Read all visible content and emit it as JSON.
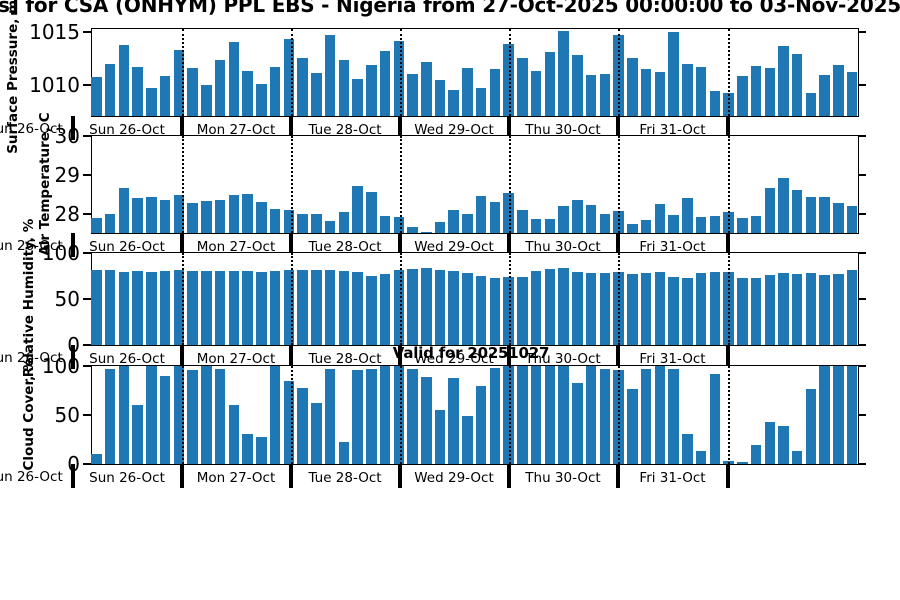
{
  "title": "s] for CSA (ONHYM) PPL EBS  - Nigeria from 27-Oct-2025 00:00:00 to 03-Nov-2025 00:00:00",
  "annotation": {
    "valid_label": "Valid for 20251027"
  },
  "day_labels": [
    "Sun 26-Oct",
    "Mon 27-Oct",
    "Tue 28-Oct",
    "Wed 29-Oct",
    "Thu 30-Oct",
    "Fri 31-Oct"
  ],
  "clipped_left_day_label": "Sun 26-Oct",
  "colors": {
    "bar": "#1f77b4",
    "axis": "#000000",
    "dotted_line": "#000000",
    "text": "#000000"
  },
  "chart_data": [
    {
      "name": "surface-pressure",
      "type": "bar",
      "ylabel": "Surface Pressure, mb",
      "yticks": [
        1010,
        1015
      ],
      "ylim": [
        1007.0,
        1015.3
      ],
      "x_day_labels": [
        "Sun 26-Oct",
        "Mon 27-Oct",
        "Tue 28-Oct",
        "Wed 29-Oct",
        "Thu 30-Oct",
        "Fri 31-Oct"
      ],
      "values": [
        1010.7,
        1012.0,
        1013.8,
        1011.7,
        1009.7,
        1010.8,
        1013.3,
        1011.6,
        1010.0,
        1012.3,
        1014.1,
        1011.3,
        1010.1,
        1011.7,
        1014.3,
        1012.5,
        1011.1,
        1014.7,
        1012.3,
        1010.5,
        1011.9,
        1013.2,
        1014.2,
        1011.0,
        1012.2,
        1010.4,
        1009.5,
        1011.6,
        1009.7,
        1011.5,
        1013.9,
        1012.5,
        1011.3,
        1013.1,
        1015.1,
        1012.8,
        1010.9,
        1011.0,
        1014.7,
        1012.5,
        1011.5,
        1011.2,
        1015.0,
        1012.0,
        1011.7,
        1009.4,
        1009.2,
        1010.8,
        1011.8,
        1011.6,
        1013.7,
        1012.9,
        1009.2,
        1010.9,
        1011.9,
        1011.2
      ]
    },
    {
      "name": "air-temperature",
      "type": "bar",
      "ylabel": "Air Temperature, C",
      "yticks": [
        28,
        29,
        30
      ],
      "ylim": [
        27.5,
        30.0
      ],
      "x_day_labels": [
        "Sun 26-Oct",
        "Mon 27-Oct",
        "Tue 28-Oct",
        "Wed 29-Oct",
        "Thu 30-Oct",
        "Fri 31-Oct"
      ],
      "values": [
        27.88,
        28.0,
        28.65,
        28.4,
        28.43,
        28.35,
        28.48,
        28.28,
        28.33,
        28.35,
        28.47,
        28.5,
        28.3,
        28.13,
        28.1,
        28.0,
        28.0,
        27.8,
        28.05,
        28.7,
        28.55,
        27.93,
        27.9,
        27.65,
        27.52,
        27.78,
        28.1,
        28.0,
        28.45,
        28.3,
        28.53,
        28.1,
        27.86,
        27.85,
        28.2,
        28.36,
        28.22,
        28.0,
        28.08,
        27.74,
        27.83,
        28.25,
        27.97,
        28.4,
        27.9,
        27.94,
        28.03,
        27.89,
        27.95,
        28.66,
        28.91,
        28.6,
        28.44,
        28.42,
        28.28,
        28.2
      ]
    },
    {
      "name": "relative-humidity",
      "type": "bar",
      "ylabel": "Relative Humidity, %",
      "yticks": [
        0,
        50,
        100
      ],
      "ylim": [
        0,
        100
      ],
      "x_day_labels": [
        "Sun 26-Oct",
        "Mon 27-Oct",
        "Tue 28-Oct",
        "Wed 29-Oct",
        "Thu 30-Oct",
        "Fri 31-Oct"
      ],
      "values": [
        81,
        81,
        79,
        80,
        79,
        80,
        81,
        80,
        80,
        80,
        80,
        80,
        79,
        80,
        81,
        82,
        81,
        81,
        80,
        79,
        75,
        77,
        81,
        83,
        84,
        82,
        80,
        78,
        75,
        73,
        74,
        74,
        80,
        83,
        84,
        79,
        78,
        78,
        79,
        77,
        78,
        79,
        74,
        73,
        78,
        79,
        79,
        73,
        73,
        76,
        78,
        77,
        78,
        76,
        77,
        81
      ]
    },
    {
      "name": "cloud-cover",
      "type": "bar",
      "ylabel": "Cloud Cover, %",
      "yticks": [
        0,
        50,
        100
      ],
      "ylim": [
        0,
        100
      ],
      "x_day_labels": [
        "Sun 26-Oct",
        "Mon 27-Oct",
        "Tue 28-Oct",
        "Wed 29-Oct",
        "Thu 30-Oct",
        "Fri 31-Oct"
      ],
      "values": [
        10,
        97,
        100,
        60,
        100,
        90,
        100,
        96,
        100,
        97,
        60,
        31,
        28,
        100,
        85,
        78,
        62,
        97,
        22,
        96,
        97,
        100,
        100,
        97,
        89,
        55,
        88,
        49,
        80,
        98,
        100,
        100,
        100,
        100,
        100,
        83,
        100,
        97,
        96,
        77,
        97,
        100,
        97,
        31,
        13,
        92,
        3,
        2,
        19,
        43,
        39,
        13,
        77,
        100,
        100,
        100
      ]
    }
  ]
}
